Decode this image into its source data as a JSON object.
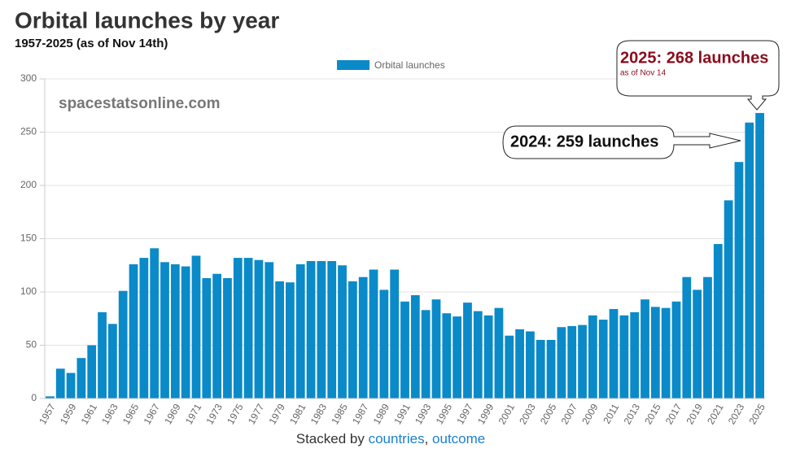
{
  "chart_data": {
    "type": "bar",
    "title": "Orbital launches by year",
    "subtitle": "1957-2025 (as of Nov 14th)",
    "watermark": "spacestatsonline.com",
    "categories": [
      "1957",
      null,
      "1959",
      null,
      "1961",
      null,
      "1963",
      null,
      "1965",
      null,
      "1967",
      null,
      "1969",
      null,
      "1971",
      null,
      "1973",
      null,
      "1975",
      null,
      "1977",
      null,
      "1979",
      null,
      "1981",
      null,
      "1983",
      null,
      "1985",
      null,
      "1987",
      null,
      "1989",
      null,
      "1991",
      null,
      "1993",
      null,
      "1995",
      null,
      "1997",
      null,
      "1999",
      null,
      "2001",
      null,
      "2003",
      null,
      "2005",
      null,
      "2007",
      null,
      "2009",
      null,
      "2011",
      null,
      "2013",
      null,
      "2015",
      null,
      "2017",
      null,
      "2019",
      null,
      "2021",
      null,
      "2023",
      null,
      "2025"
    ],
    "series": [
      {
        "name": "Orbital launches",
        "color": "#0a8ac8",
        "values": [
          2,
          28,
          24,
          38,
          50,
          81,
          70,
          101,
          126,
          132,
          141,
          128,
          126,
          124,
          134,
          113,
          117,
          113,
          132,
          132,
          130,
          128,
          110,
          109,
          126,
          129,
          129,
          129,
          125,
          110,
          114,
          121,
          102,
          121,
          91,
          97,
          83,
          93,
          80,
          77,
          90,
          82,
          78,
          85,
          59,
          65,
          63,
          55,
          55,
          67,
          68,
          69,
          78,
          74,
          84,
          78,
          81,
          93,
          86,
          85,
          91,
          114,
          102,
          114,
          145,
          186,
          222,
          259,
          268
        ]
      }
    ],
    "ylim": [
      0,
      300
    ],
    "yticks": [
      0,
      50,
      100,
      150,
      200,
      250,
      300
    ],
    "grid": true,
    "legend": "top",
    "annotations": [
      {
        "text": "2025: 268 launches",
        "note": "as of Nov 14"
      },
      {
        "text": "2024: 259 launches"
      }
    ],
    "footer": {
      "prefix": "Stacked by",
      "links": [
        "countries",
        "outcome"
      ],
      "separator": ","
    }
  }
}
